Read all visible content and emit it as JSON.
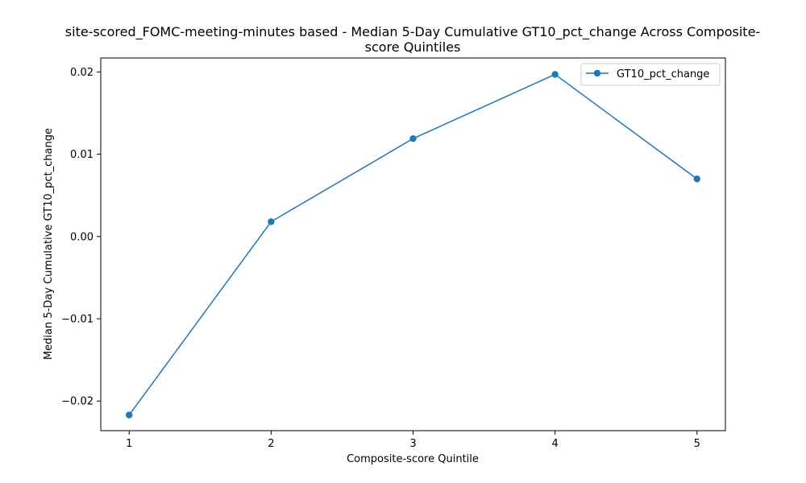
{
  "chart_data": {
    "type": "line",
    "title_lines": [
      "site-scored_FOMC-meeting-minutes based - Median 5-Day Cumulative GT10_pct_change Across Composite-",
      "score Quintiles"
    ],
    "xlabel": "Composite-score Quintile",
    "ylabel": "Median 5-Day Cumulative GT10_pct_change",
    "x": [
      1,
      2,
      3,
      4,
      5
    ],
    "x_tick_labels": [
      "1",
      "2",
      "3",
      "4",
      "5"
    ],
    "xlim": [
      0.8,
      5.2
    ],
    "ylim": [
      -0.0236,
      0.0217
    ],
    "y_ticks": [
      -0.02,
      -0.01,
      0.0,
      0.01,
      0.02
    ],
    "y_tick_labels": [
      "−0.02",
      "−0.01",
      "0.00",
      "0.01",
      "0.02"
    ],
    "grid": false,
    "legend_position": "top-right",
    "series": [
      {
        "name": "GT10_pct_change",
        "color": "#1f77b4",
        "marker": "circle",
        "values": [
          -0.0217,
          0.0018,
          0.0119,
          0.0197,
          0.007
        ]
      }
    ]
  }
}
